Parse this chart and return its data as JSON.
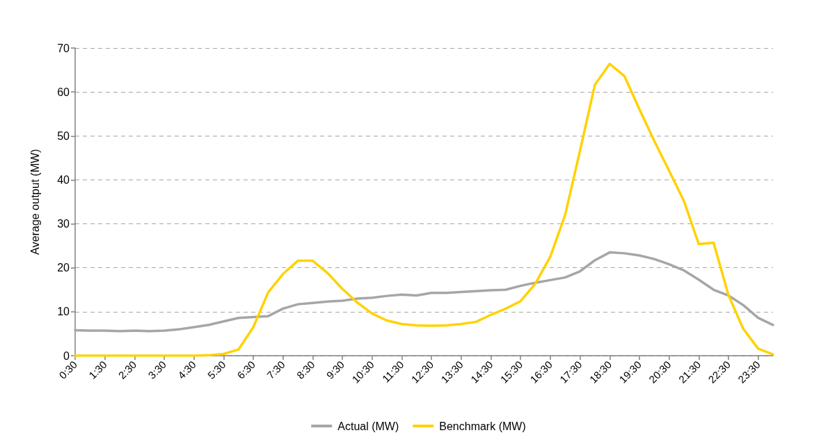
{
  "chart_data": {
    "type": "line",
    "ylabel": "Average output (MW)",
    "categories": [
      "0:30",
      null,
      "1:30",
      null,
      "2:30",
      null,
      "3:30",
      null,
      "4:30",
      null,
      "5:30",
      null,
      "6:30",
      null,
      "7:30",
      null,
      "8:30",
      null,
      "9:30",
      null,
      "10:30",
      null,
      "11:30",
      null,
      "12:30",
      null,
      "13:30",
      null,
      "14:30",
      null,
      "15:30",
      null,
      "16:30",
      null,
      "17:30",
      null,
      "18:30",
      null,
      "19:30",
      null,
      "20:30",
      null,
      "21:30",
      null,
      "22:30",
      null,
      "23:30",
      null
    ],
    "series": [
      {
        "name": "Actual (MW)",
        "color": "#a6a6a6",
        "values": [
          5.8,
          5.7,
          5.7,
          5.6,
          5.7,
          5.6,
          5.7,
          6.0,
          6.5,
          7.0,
          7.8,
          8.6,
          8.8,
          9.0,
          10.7,
          11.7,
          12.0,
          12.3,
          12.5,
          13.0,
          13.2,
          13.6,
          13.9,
          13.7,
          14.3,
          14.3,
          14.5,
          14.7,
          14.9,
          15.0,
          15.9,
          16.6,
          17.2,
          17.8,
          19.2,
          21.7,
          23.5,
          23.3,
          22.8,
          22.0,
          20.8,
          19.4,
          17.3,
          15.0,
          13.7,
          11.5,
          8.6,
          7.0
        ]
      },
      {
        "name": "Benchmark (MW)",
        "color": "#ffd200",
        "values": [
          0,
          0,
          0,
          0,
          0,
          0,
          0,
          0,
          0,
          0.1,
          0.4,
          1.4,
          6.5,
          14.4,
          18.6,
          21.6,
          21.6,
          18.8,
          15.2,
          12.1,
          9.6,
          8.0,
          7.2,
          6.9,
          6.8,
          6.9,
          7.2,
          7.7,
          9.3,
          10.7,
          12.4,
          16.4,
          22.5,
          32.0,
          46.6,
          61.6,
          66.4,
          63.6,
          56.1,
          48.9,
          42.1,
          35.2,
          25.4,
          25.7,
          13.8,
          6.1,
          1.6,
          0.3
        ]
      }
    ],
    "ylim": [
      0,
      70
    ],
    "yticks": [
      0,
      10,
      20,
      30,
      40,
      50,
      60,
      70
    ],
    "grid": "y",
    "legend": "bottom",
    "marker": "none",
    "line_style": "solid"
  }
}
